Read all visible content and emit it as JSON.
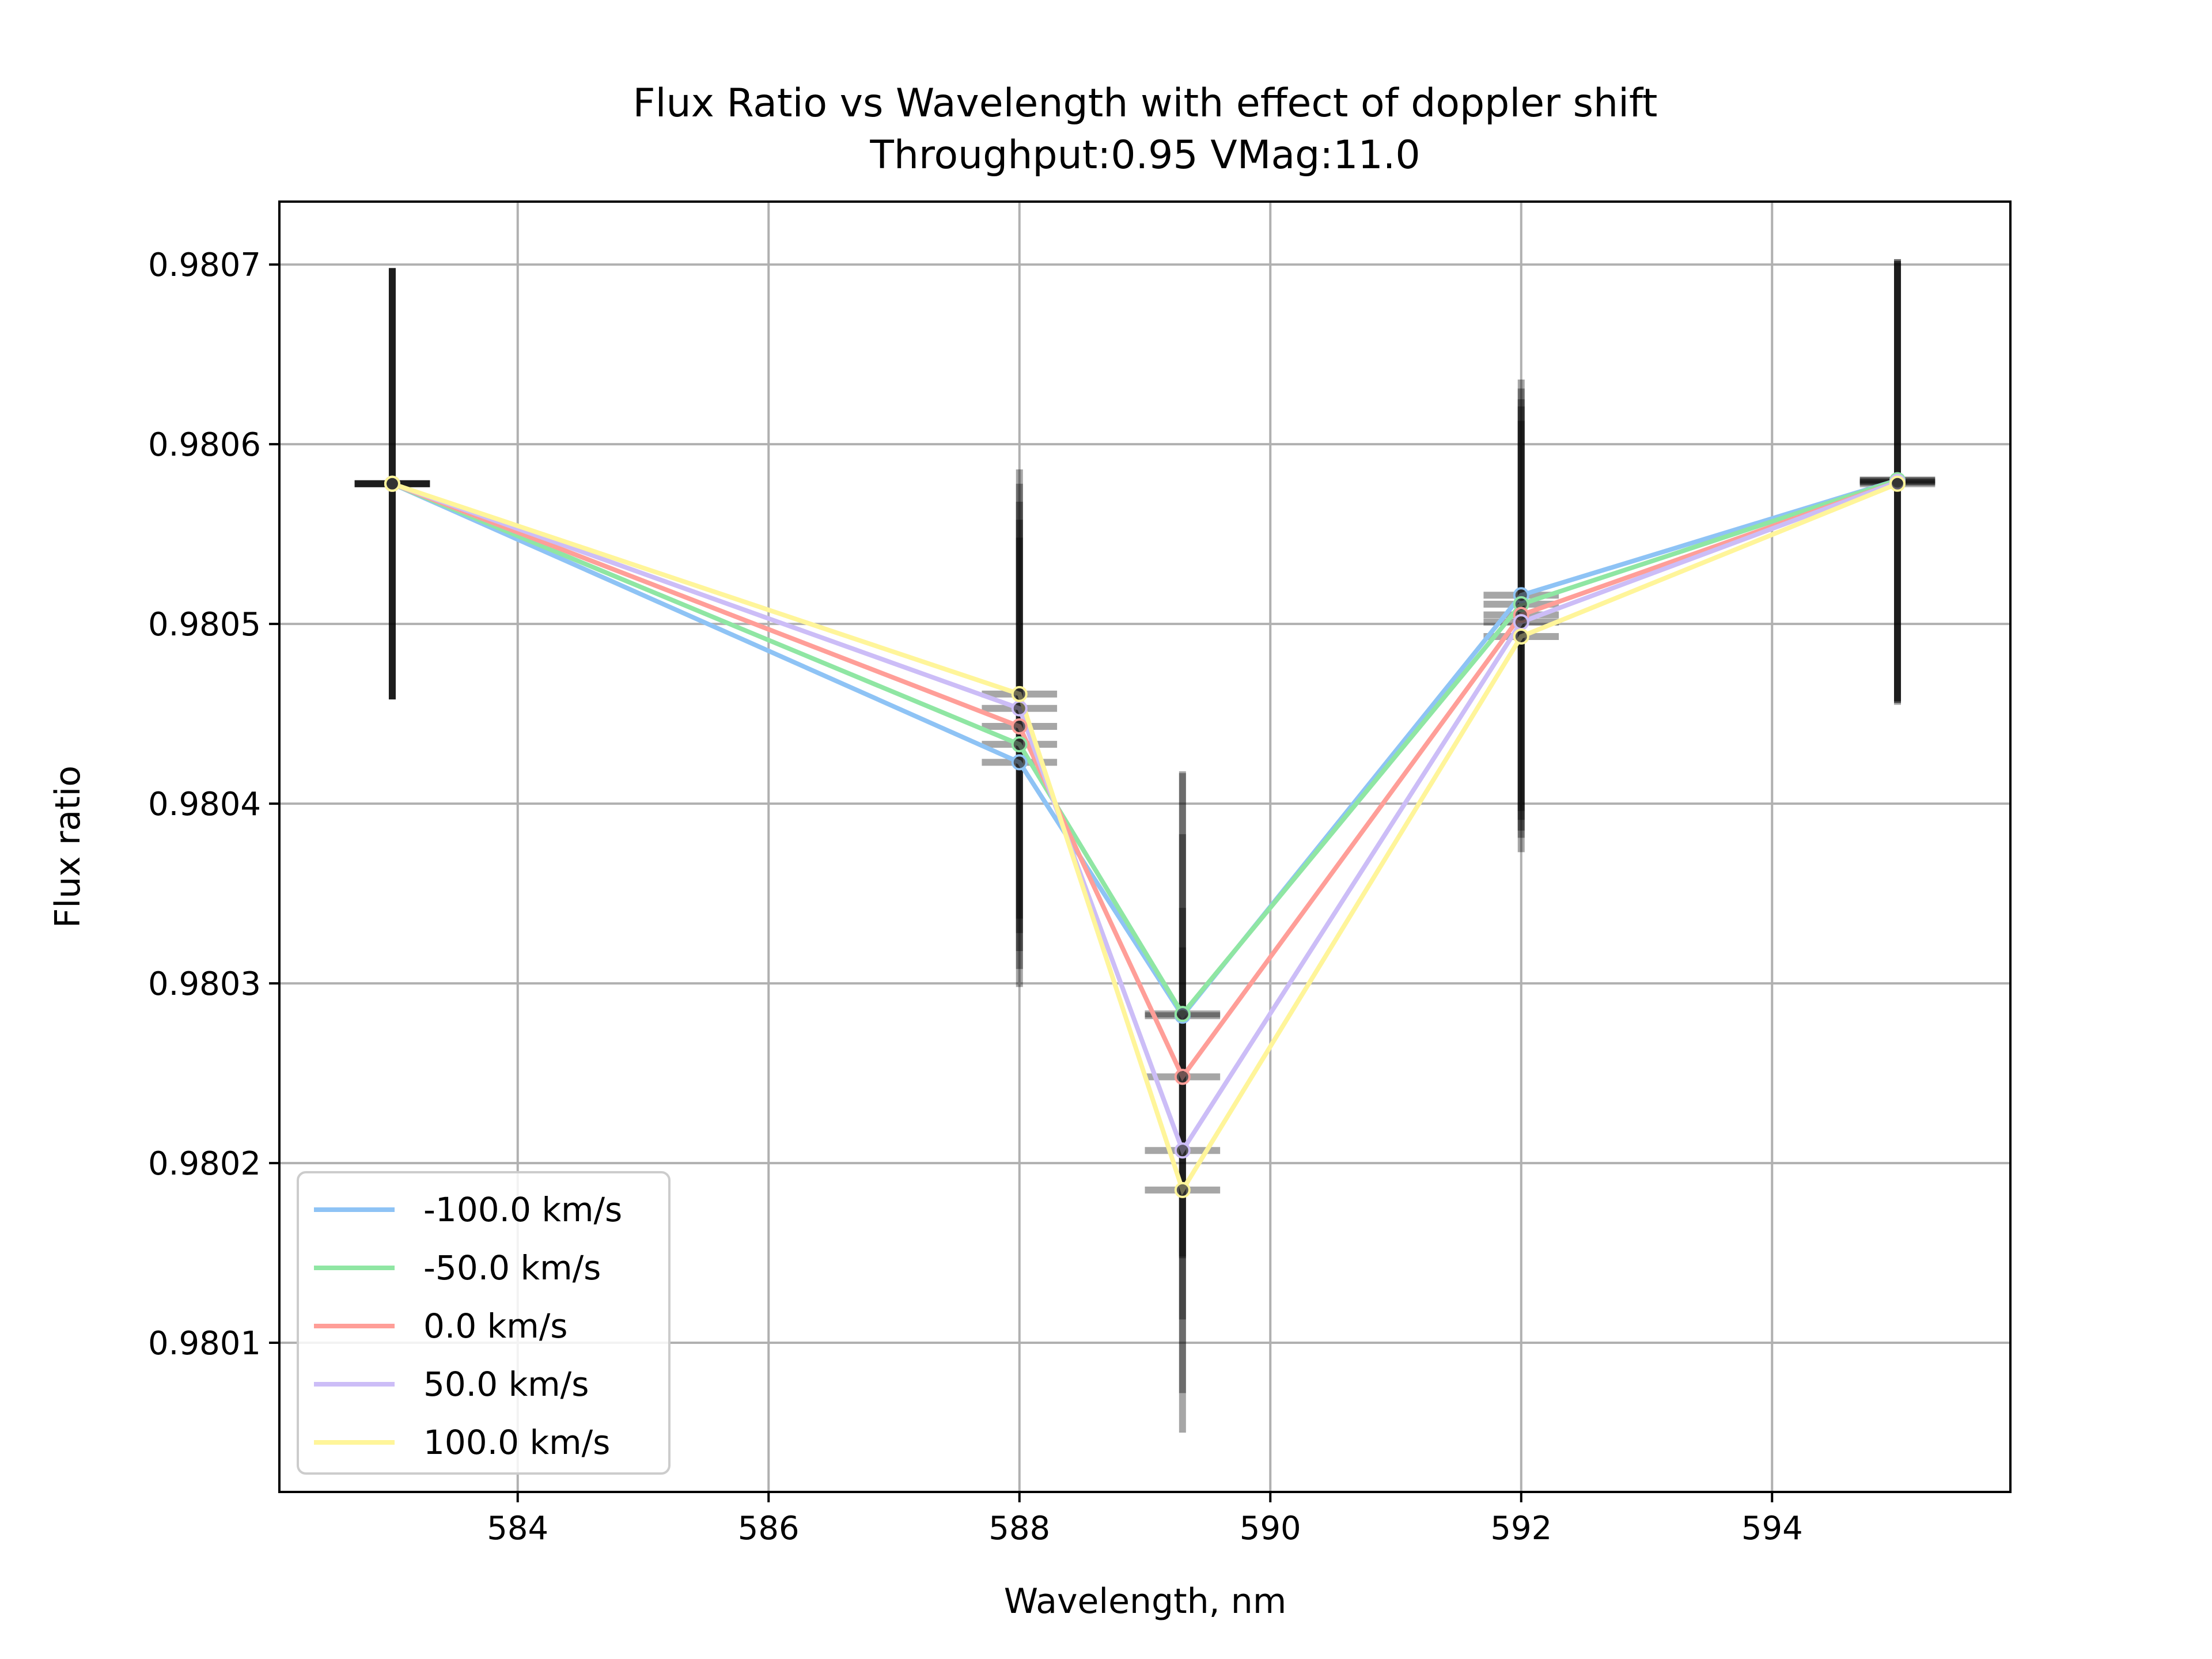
{
  "chart_data": {
    "type": "line",
    "title": "Flux Ratio vs Wavelength with effect of doppler shift",
    "subtitle": "Throughput:0.95 VMag:11.0",
    "xlabel": "Wavelength, nm",
    "ylabel": "Flux ratio",
    "xlim": [
      582.1,
      595.9
    ],
    "ylim": [
      0.980017,
      0.980735
    ],
    "xticks": [
      584,
      586,
      588,
      590,
      592,
      594
    ],
    "yticks": [
      0.9801,
      0.9802,
      0.9803,
      0.9804,
      0.9805,
      0.9806,
      0.9807
    ],
    "grid": true,
    "legend_position": "lower-left",
    "x": [
      583.0,
      588.0,
      589.3,
      592.0,
      595.0
    ],
    "series": [
      {
        "name": "-100.0 km/s",
        "color": "#8ec3f5",
        "values": [
          0.980578,
          0.980423,
          0.980282,
          0.980516,
          0.98058
        ],
        "yerr": [
          0.00012,
          0.000125,
          0.000135,
          0.00012,
          0.000123
        ],
        "xerr": 0.3
      },
      {
        "name": "-50.0 km/s",
        "color": "#8fe6a3",
        "values": [
          0.980578,
          0.980433,
          0.980283,
          0.980511,
          0.98058
        ],
        "yerr": [
          0.00012,
          0.000125,
          0.000135,
          0.00012,
          0.000123
        ],
        "xerr": 0.3
      },
      {
        "name": "0.0 km/s",
        "color": "#ff9e98",
        "values": [
          0.980578,
          0.980443,
          0.980248,
          0.980505,
          0.980579
        ],
        "yerr": [
          0.00012,
          0.000125,
          0.000135,
          0.00012,
          0.000123
        ],
        "xerr": 0.3
      },
      {
        "name": "50.0 km/s",
        "color": "#ccbdf7",
        "values": [
          0.980578,
          0.980453,
          0.980207,
          0.980501,
          0.980579
        ],
        "yerr": [
          0.00012,
          0.000125,
          0.000135,
          0.00012,
          0.000123
        ],
        "xerr": 0.3
      },
      {
        "name": "100.0 km/s",
        "color": "#fff59a",
        "values": [
          0.980578,
          0.980461,
          0.980185,
          0.980493,
          0.980578
        ],
        "yerr": [
          0.00012,
          0.000125,
          0.000135,
          0.00012,
          0.000123
        ],
        "xerr": 0.3
      }
    ]
  }
}
